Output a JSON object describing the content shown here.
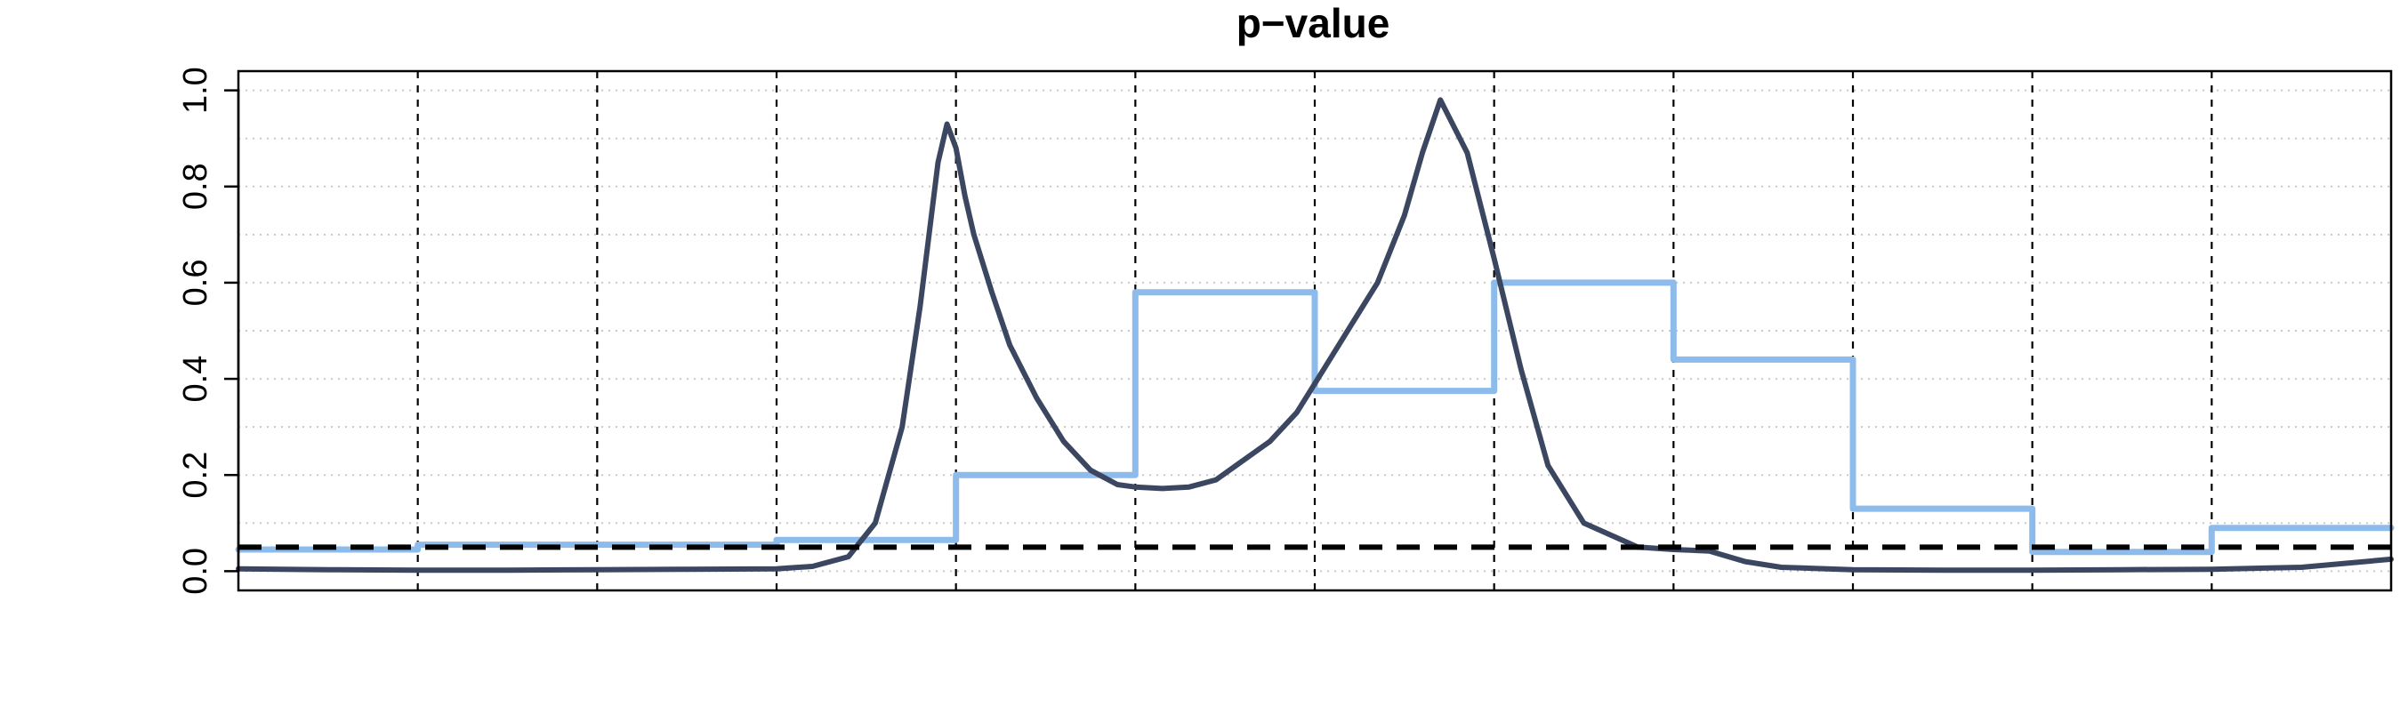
{
  "chart_data": {
    "type": "line",
    "title": "p−value",
    "xlabel": "",
    "ylabel": "",
    "xlim": [
      0,
      12
    ],
    "ylim": [
      -0.04,
      1.04
    ],
    "yticks": [
      "0.0",
      "0.2",
      "0.4",
      "0.6",
      "0.8",
      "1.0"
    ],
    "ytick_values": [
      0,
      0.2,
      0.4,
      0.6,
      0.8,
      1.0
    ],
    "vlines": [
      1,
      2,
      3,
      4,
      5,
      6,
      7,
      8,
      9,
      10,
      11
    ],
    "hgrid": [
      0,
      0.1,
      0.2,
      0.3,
      0.4,
      0.5,
      0.6,
      0.7,
      0.8,
      0.9,
      1.0
    ],
    "threshold": 0.05,
    "grid": true,
    "legend": "none",
    "colors": {
      "smooth": "#3b4660",
      "step": "#8dbbec",
      "threshold": "#000000",
      "grid": "#c8c8c8"
    },
    "series": [
      {
        "x": [
          0,
          0.5,
          1,
          1.5,
          2,
          2.5,
          3,
          3.2,
          3.4,
          3.55,
          3.7,
          3.8,
          3.9,
          3.95,
          4.0,
          4.05,
          4.1,
          4.2,
          4.3,
          4.45,
          4.6,
          4.75,
          4.9,
          5.0,
          5.15,
          5.3,
          5.45,
          5.6,
          5.75,
          5.9,
          6.05,
          6.2,
          6.35,
          6.5,
          6.6,
          6.7,
          6.85,
          7.0,
          7.15,
          7.3,
          7.5,
          7.8,
          8.0,
          8.2,
          8.4,
          8.6,
          9.0,
          9.5,
          10.0,
          10.5,
          11.0,
          11.5,
          12.0
        ],
        "y": [
          0.005,
          0.003,
          0.002,
          0.002,
          0.003,
          0.004,
          0.005,
          0.01,
          0.03,
          0.1,
          0.3,
          0.55,
          0.85,
          0.93,
          0.88,
          0.78,
          0.7,
          0.58,
          0.47,
          0.36,
          0.27,
          0.21,
          0.18,
          0.175,
          0.172,
          0.175,
          0.19,
          0.23,
          0.27,
          0.33,
          0.42,
          0.51,
          0.6,
          0.74,
          0.87,
          0.98,
          0.87,
          0.65,
          0.42,
          0.22,
          0.1,
          0.05,
          0.045,
          0.042,
          0.02,
          0.008,
          0.003,
          0.002,
          0.002,
          0.003,
          0.004,
          0.008,
          0.025
        ]
      },
      {
        "x": [
          0,
          1,
          1,
          3,
          3,
          4,
          4,
          5,
          5,
          6,
          6,
          7,
          7,
          8,
          8,
          9,
          9,
          10,
          10,
          11,
          11,
          12
        ],
        "y": [
          0.045,
          0.045,
          0.055,
          0.055,
          0.065,
          0.065,
          0.2,
          0.2,
          0.58,
          0.58,
          0.375,
          0.375,
          0.6,
          0.6,
          0.44,
          0.44,
          0.13,
          0.13,
          0.04,
          0.04,
          0.09,
          0.09
        ]
      }
    ]
  }
}
